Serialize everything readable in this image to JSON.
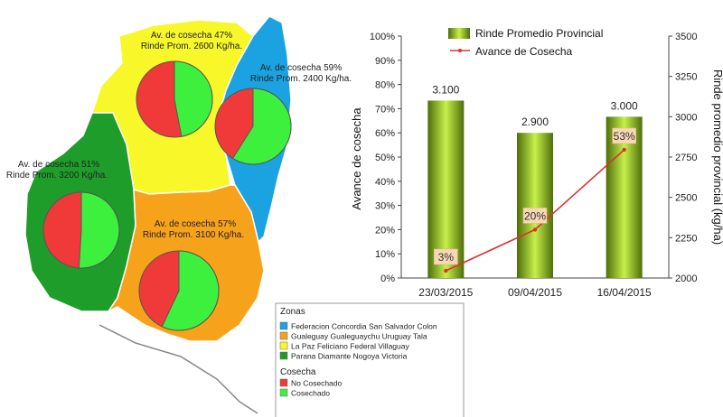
{
  "colors": {
    "zona_blue": "#1aa3e0",
    "zona_orange": "#f7a21b",
    "zona_yellow": "#f7f72a",
    "zona_green": "#1f9d2a",
    "no_cosechado": "#f03a3a",
    "cosechado": "#3ef03e",
    "line": "#e03030",
    "bar_dark": "#4e6e0a",
    "bar_light": "#c6f04a"
  },
  "map": {
    "zones": [
      {
        "name": "La Paz Feliciano Federal Villaguay",
        "color_key": "zona_yellow",
        "avance_label": "Av. de cosecha 47%",
        "rinde_label": "Rinde Prom. 2600 Kg/ha.",
        "cosechado_pct": 47
      },
      {
        "name": "Federacion Concordia San Salvador Colon",
        "color_key": "zona_blue",
        "avance_label": "Av. de cosecha 59%",
        "rinde_label": "Rinde Prom. 2400 Kg/ha.",
        "cosechado_pct": 59
      },
      {
        "name": "Parana Diamante Nogoya Victoria",
        "color_key": "zona_green",
        "avance_label": "Av. de cosecha 51%",
        "rinde_label": "Rinde Prom. 3200 Kg/ha.",
        "cosechado_pct": 51
      },
      {
        "name": "Gualeguay Gualeguaychu Uruguay Tala",
        "color_key": "zona_orange",
        "avance_label": "Av. de cosecha 57%",
        "rinde_label": "Rinde Prom. 3100 Kg/ha.",
        "cosechado_pct": 57
      }
    ],
    "legend": {
      "zonas_title": "Zonas",
      "zonas": [
        {
          "label": "Federacion Concordia San Salvador Colon",
          "color_key": "zona_blue"
        },
        {
          "label": "Gualeguay Gualeguaychu Uruguay  Tala",
          "color_key": "zona_orange"
        },
        {
          "label": "La Paz Feliciano Federal  Villaguay",
          "color_key": "zona_yellow"
        },
        {
          "label": "Parana Diamante Nogoya Victoria",
          "color_key": "zona_green"
        }
      ],
      "cosecha_title": "Cosecha",
      "cosecha": [
        {
          "label": "No Cosechado",
          "color_key": "no_cosechado"
        },
        {
          "label": "Cosechado",
          "color_key": "cosechado"
        }
      ]
    }
  },
  "chart_data": {
    "type": "bar",
    "categories": [
      "23/03/2015",
      "09/04/2015",
      "16/04/2015"
    ],
    "series": [
      {
        "name": "Rinde Promedio Provincial",
        "type": "bar",
        "axis": "right",
        "values": [
          3100,
          2900,
          3000
        ],
        "labels": [
          "3.100",
          "2.900",
          "3.000"
        ]
      },
      {
        "name": "Avance de Cosecha",
        "type": "line",
        "axis": "left",
        "values": [
          3,
          20,
          53
        ],
        "labels": [
          "3%",
          "20%",
          "53%"
        ]
      }
    ],
    "ylabel": "Avance de cosecha",
    "y2label": "Rinde promedio provincial (kg/ha)",
    "ylim": [
      0,
      100
    ],
    "y2lim": [
      2000,
      3500
    ],
    "yticks": [
      "0%",
      "10%",
      "20%",
      "30%",
      "40%",
      "50%",
      "60%",
      "70%",
      "80%",
      "90%",
      "100%"
    ],
    "y2ticks": [
      "2000",
      "2250",
      "2500",
      "2750",
      "3000",
      "3250",
      "3500"
    ],
    "legend_position": "top"
  }
}
